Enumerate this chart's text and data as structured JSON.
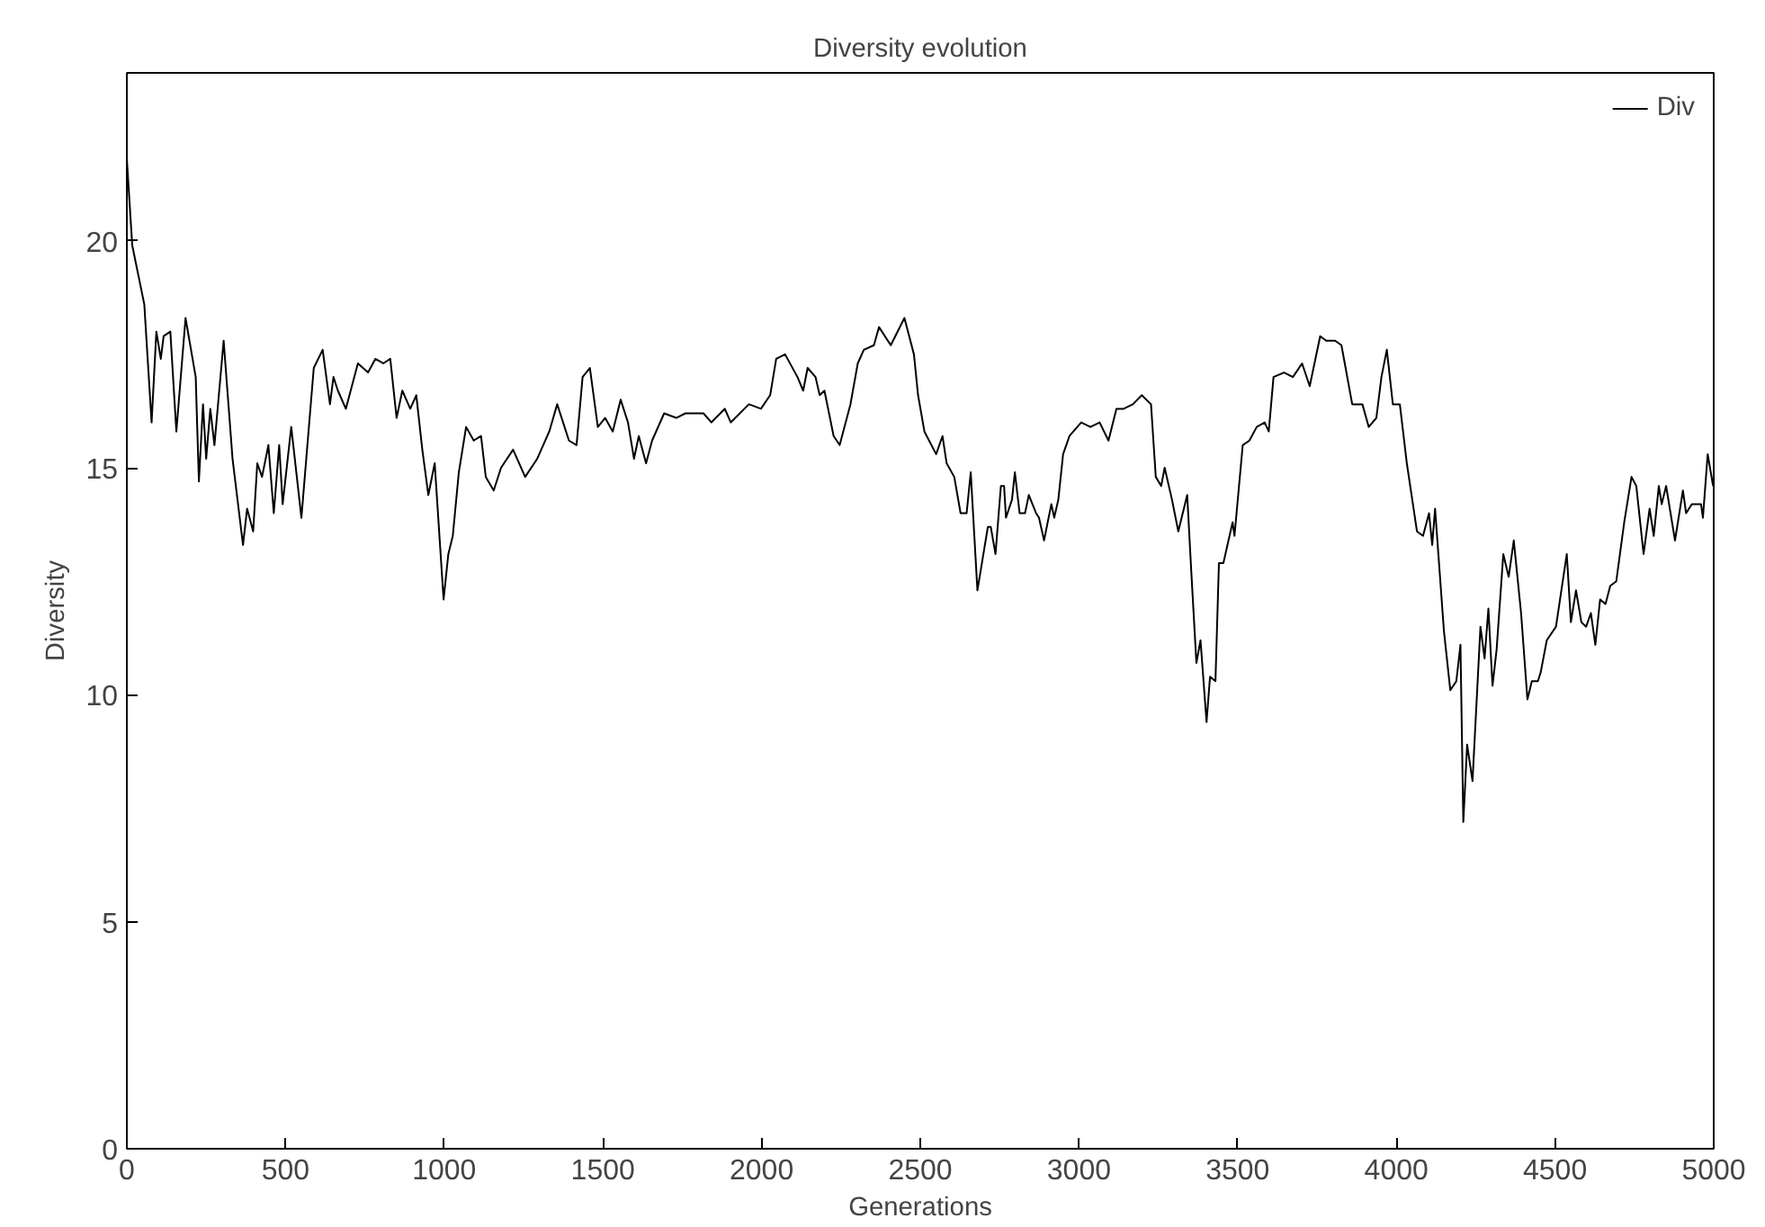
{
  "chart_data": {
    "type": "line",
    "title": "Diversity evolution",
    "xlabel": "Generations",
    "ylabel": "Diversity",
    "xlim": [
      0,
      5000
    ],
    "ylim": [
      0,
      23.7
    ],
    "xticks": [
      0,
      500,
      1000,
      1500,
      2000,
      2500,
      3000,
      3500,
      4000,
      4500,
      5000
    ],
    "yticks": [
      0,
      5,
      10,
      15,
      20
    ],
    "grid": false,
    "legend": "top right",
    "marker": "none",
    "line_style": "solid",
    "series": [
      {
        "name": "Div",
        "color": "#000000",
        "x": [
          0,
          17,
          55,
          78,
          93,
          107,
          116,
          137,
          156,
          185,
          217,
          227,
          240,
          250,
          263,
          276,
          305,
          333,
          366,
          379,
          398,
          411,
          426,
          446,
          463,
          480,
          491,
          518,
          550,
          589,
          617,
          640,
          651,
          665,
          690,
          728,
          760,
          783,
          808,
          830,
          850,
          868,
          893,
          912,
          931,
          950,
          970,
          998,
          1013,
          1027,
          1046,
          1069,
          1093,
          1116,
          1131,
          1156,
          1179,
          1217,
          1255,
          1293,
          1331,
          1356,
          1393,
          1417,
          1436,
          1459,
          1484,
          1507,
          1531,
          1556,
          1579,
          1598,
          1613,
          1636,
          1655,
          1693,
          1731,
          1760,
          1817,
          1842,
          1884,
          1903,
          1960,
          1998,
          2027,
          2046,
          2074,
          2113,
          2131,
          2145,
          2170,
          2183,
          2198,
          2227,
          2246,
          2280,
          2303,
          2322,
          2354,
          2370,
          2407,
          2450,
          2480,
          2493,
          2513,
          2550,
          2570,
          2583,
          2607,
          2627,
          2646,
          2659,
          2680,
          2713,
          2722,
          2737,
          2754,
          2764,
          2770,
          2789,
          2798,
          2813,
          2830,
          2842,
          2865,
          2874,
          2890,
          2913,
          2922,
          2935,
          2950,
          2970,
          3007,
          3036,
          3065,
          3093,
          3118,
          3141,
          3170,
          3198,
          3227,
          3242,
          3259,
          3270,
          3293,
          3313,
          3341,
          3354,
          3370,
          3383,
          3402,
          3413,
          3430,
          3441,
          3455,
          3484,
          3490,
          3516,
          3537,
          3560,
          3585,
          3598,
          3613,
          3646,
          3674,
          3703,
          3727,
          3760,
          3779,
          3807,
          3827,
          3861,
          3893,
          3913,
          3937,
          3953,
          3970,
          3989,
          4011,
          4033,
          4065,
          4084,
          4103,
          4113,
          4122,
          4150,
          4170,
          4189,
          4202,
          4211,
          4223,
          4240,
          4265,
          4278,
          4290,
          4303,
          4316,
          4337,
          4354,
          4370,
          4393,
          4413,
          4427,
          4446,
          4455,
          4474,
          4503,
          4537,
          4550,
          4566,
          4583,
          4598,
          4613,
          4627,
          4642,
          4659,
          4674,
          4693,
          4718,
          4741,
          4756,
          4779,
          4798,
          4811,
          4827,
          4836,
          4850,
          4878,
          4903,
          4913,
          4931,
          4960,
          4966,
          4981,
          4998
        ],
        "values": [
          21.8,
          19.9,
          18.6,
          16.0,
          18.0,
          17.4,
          17.9,
          18.0,
          15.8,
          18.3,
          17.0,
          14.7,
          16.4,
          15.2,
          16.3,
          15.5,
          17.8,
          15.2,
          13.3,
          14.1,
          13.6,
          15.1,
          14.8,
          15.5,
          14.0,
          15.5,
          14.2,
          15.9,
          13.9,
          17.2,
          17.6,
          16.4,
          17.0,
          16.7,
          16.3,
          17.3,
          17.1,
          17.4,
          17.3,
          17.4,
          16.1,
          16.7,
          16.3,
          16.6,
          15.4,
          14.4,
          15.1,
          12.1,
          13.1,
          13.5,
          14.9,
          15.9,
          15.6,
          15.7,
          14.8,
          14.5,
          15.0,
          15.4,
          14.8,
          15.2,
          15.8,
          16.4,
          15.6,
          15.5,
          17.0,
          17.2,
          15.9,
          16.1,
          15.8,
          16.5,
          16.0,
          15.2,
          15.7,
          15.1,
          15.6,
          16.2,
          16.1,
          16.2,
          16.2,
          16.0,
          16.3,
          16.0,
          16.4,
          16.3,
          16.6,
          17.4,
          17.5,
          17.0,
          16.7,
          17.2,
          17.0,
          16.6,
          16.7,
          15.7,
          15.5,
          16.4,
          17.3,
          17.6,
          17.7,
          18.1,
          17.7,
          18.3,
          17.5,
          16.6,
          15.8,
          15.3,
          15.7,
          15.1,
          14.8,
          14.0,
          14.0,
          14.9,
          12.3,
          13.7,
          13.7,
          13.1,
          14.6,
          14.6,
          13.9,
          14.3,
          14.9,
          14.0,
          14.0,
          14.4,
          14.0,
          13.9,
          13.4,
          14.2,
          13.9,
          14.3,
          15.3,
          15.7,
          16.0,
          15.9,
          16.0,
          15.6,
          16.3,
          16.3,
          16.4,
          16.6,
          16.4,
          14.8,
          14.6,
          15.0,
          14.3,
          13.6,
          14.4,
          12.7,
          10.7,
          11.2,
          9.4,
          10.4,
          10.3,
          12.9,
          12.9,
          13.8,
          13.5,
          15.5,
          15.6,
          15.9,
          16.0,
          15.8,
          17.0,
          17.1,
          17.0,
          17.3,
          16.8,
          17.9,
          17.8,
          17.8,
          17.7,
          16.4,
          16.4,
          15.9,
          16.1,
          17.0,
          17.6,
          16.4,
          16.4,
          15.1,
          13.6,
          13.5,
          14.0,
          13.3,
          14.1,
          11.4,
          10.1,
          10.3,
          11.1,
          7.2,
          8.9,
          8.1,
          11.5,
          10.8,
          11.9,
          10.2,
          11.0,
          13.1,
          12.6,
          13.4,
          11.8,
          9.9,
          10.3,
          10.3,
          10.5,
          11.2,
          11.5,
          13.1,
          11.6,
          12.3,
          11.6,
          11.5,
          11.8,
          11.1,
          12.1,
          12.0,
          12.4,
          12.5,
          13.8,
          14.8,
          14.6,
          13.1,
          14.1,
          13.5,
          14.6,
          14.2,
          14.6,
          13.4,
          14.5,
          14.0,
          14.2,
          14.2,
          13.9,
          15.3,
          14.6
        ]
      }
    ]
  }
}
